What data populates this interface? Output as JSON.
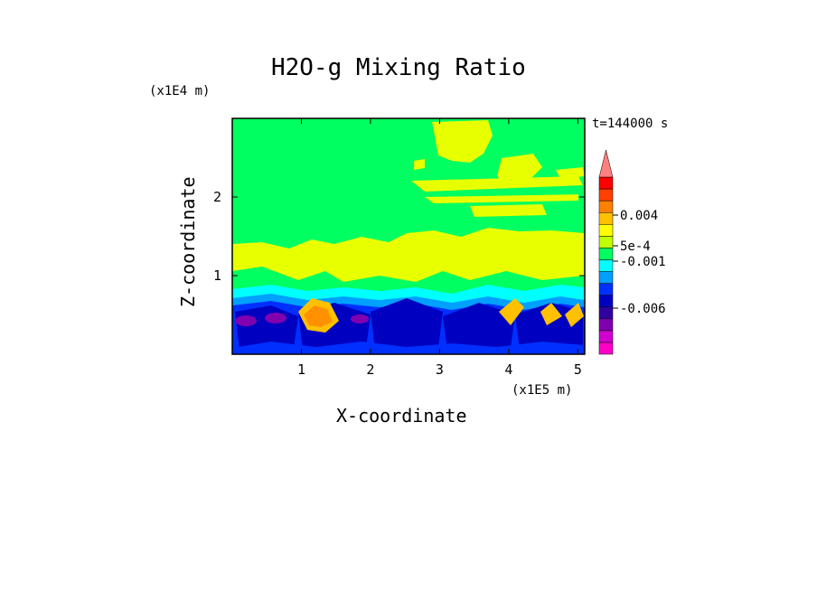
{
  "chart_data": {
    "type": "heatmap",
    "title": "H2O-g Mixing Ratio",
    "time_label": "t=144000 s",
    "xlabel": "X-coordinate",
    "ylabel": "Z-coordinate",
    "x_multiplier": "(x1E5 m)",
    "y_multiplier": "(x1E4 m)",
    "xlim": [
      0,
      5.1
    ],
    "ylim": [
      0,
      3.0
    ],
    "x_ticks": [
      "1",
      "2",
      "3",
      "4",
      "5"
    ],
    "y_ticks": [
      "1",
      "2"
    ],
    "colorbar": {
      "labels": [
        "0.004",
        "5e-4",
        "-0.001",
        "-0.006"
      ],
      "colors": [
        "#ff00c8",
        "#d000d0",
        "#8000b0",
        "#3000a0",
        "#0000c0",
        "#0030ff",
        "#00a0ff",
        "#00ffff",
        "#00ff60",
        "#c0ff00",
        "#ffff00",
        "#ffc000",
        "#ff8000",
        "#ff4000",
        "#ff0000",
        "#ff8080"
      ]
    }
  }
}
